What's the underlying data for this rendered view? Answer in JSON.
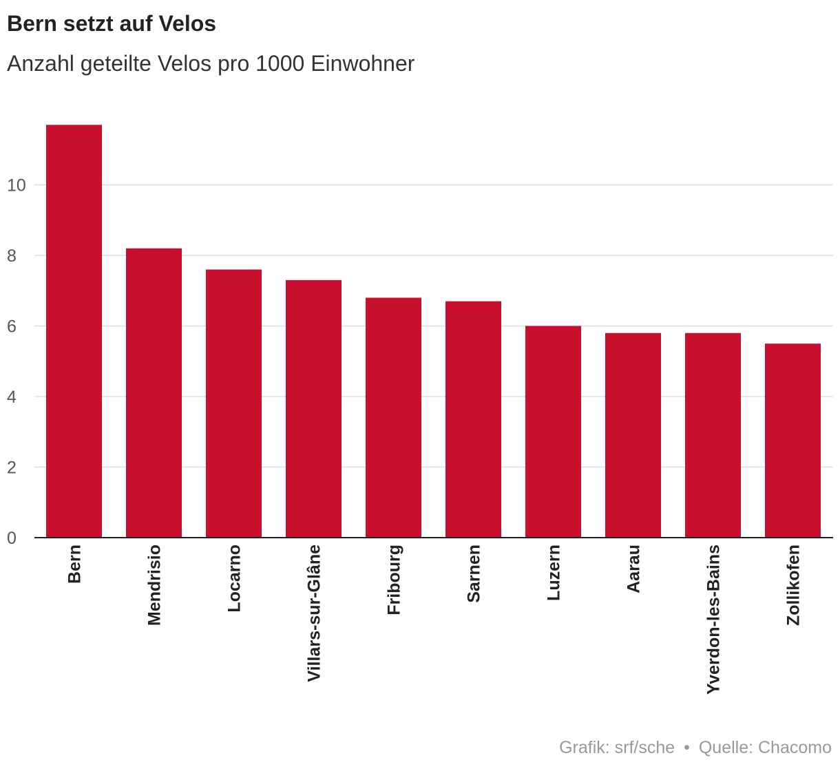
{
  "title": "Bern setzt auf Velos",
  "subtitle": "Anzahl geteilte Velos pro 1000 Einwohner",
  "footer": {
    "credit": "Grafik: srf/sche",
    "separator": "•",
    "source": "Quelle: Chacomo"
  },
  "colors": {
    "bar": "#c8102e",
    "grid": "#dddddd",
    "axis": "#222222",
    "tick_label": "#555555",
    "category_label": "#222222"
  },
  "chart_data": {
    "type": "bar",
    "title": "Bern setzt auf Velos",
    "subtitle": "Anzahl geteilte Velos pro 1000 Einwohner",
    "xlabel": "",
    "ylabel": "",
    "categories": [
      "Bern",
      "Mendrisio",
      "Locarno",
      "Villars-sur-Glâne",
      "Fribourg",
      "Sarnen",
      "Luzern",
      "Aarau",
      "Yverdon-les-Bains",
      "Zollikofen"
    ],
    "values": [
      11.7,
      8.2,
      7.6,
      7.3,
      6.8,
      6.7,
      6.0,
      5.8,
      5.8,
      5.5
    ],
    "yticks": [
      0,
      2,
      4,
      6,
      8,
      10
    ],
    "ylim": [
      0,
      11.7
    ],
    "grid": true,
    "legend": "none"
  }
}
